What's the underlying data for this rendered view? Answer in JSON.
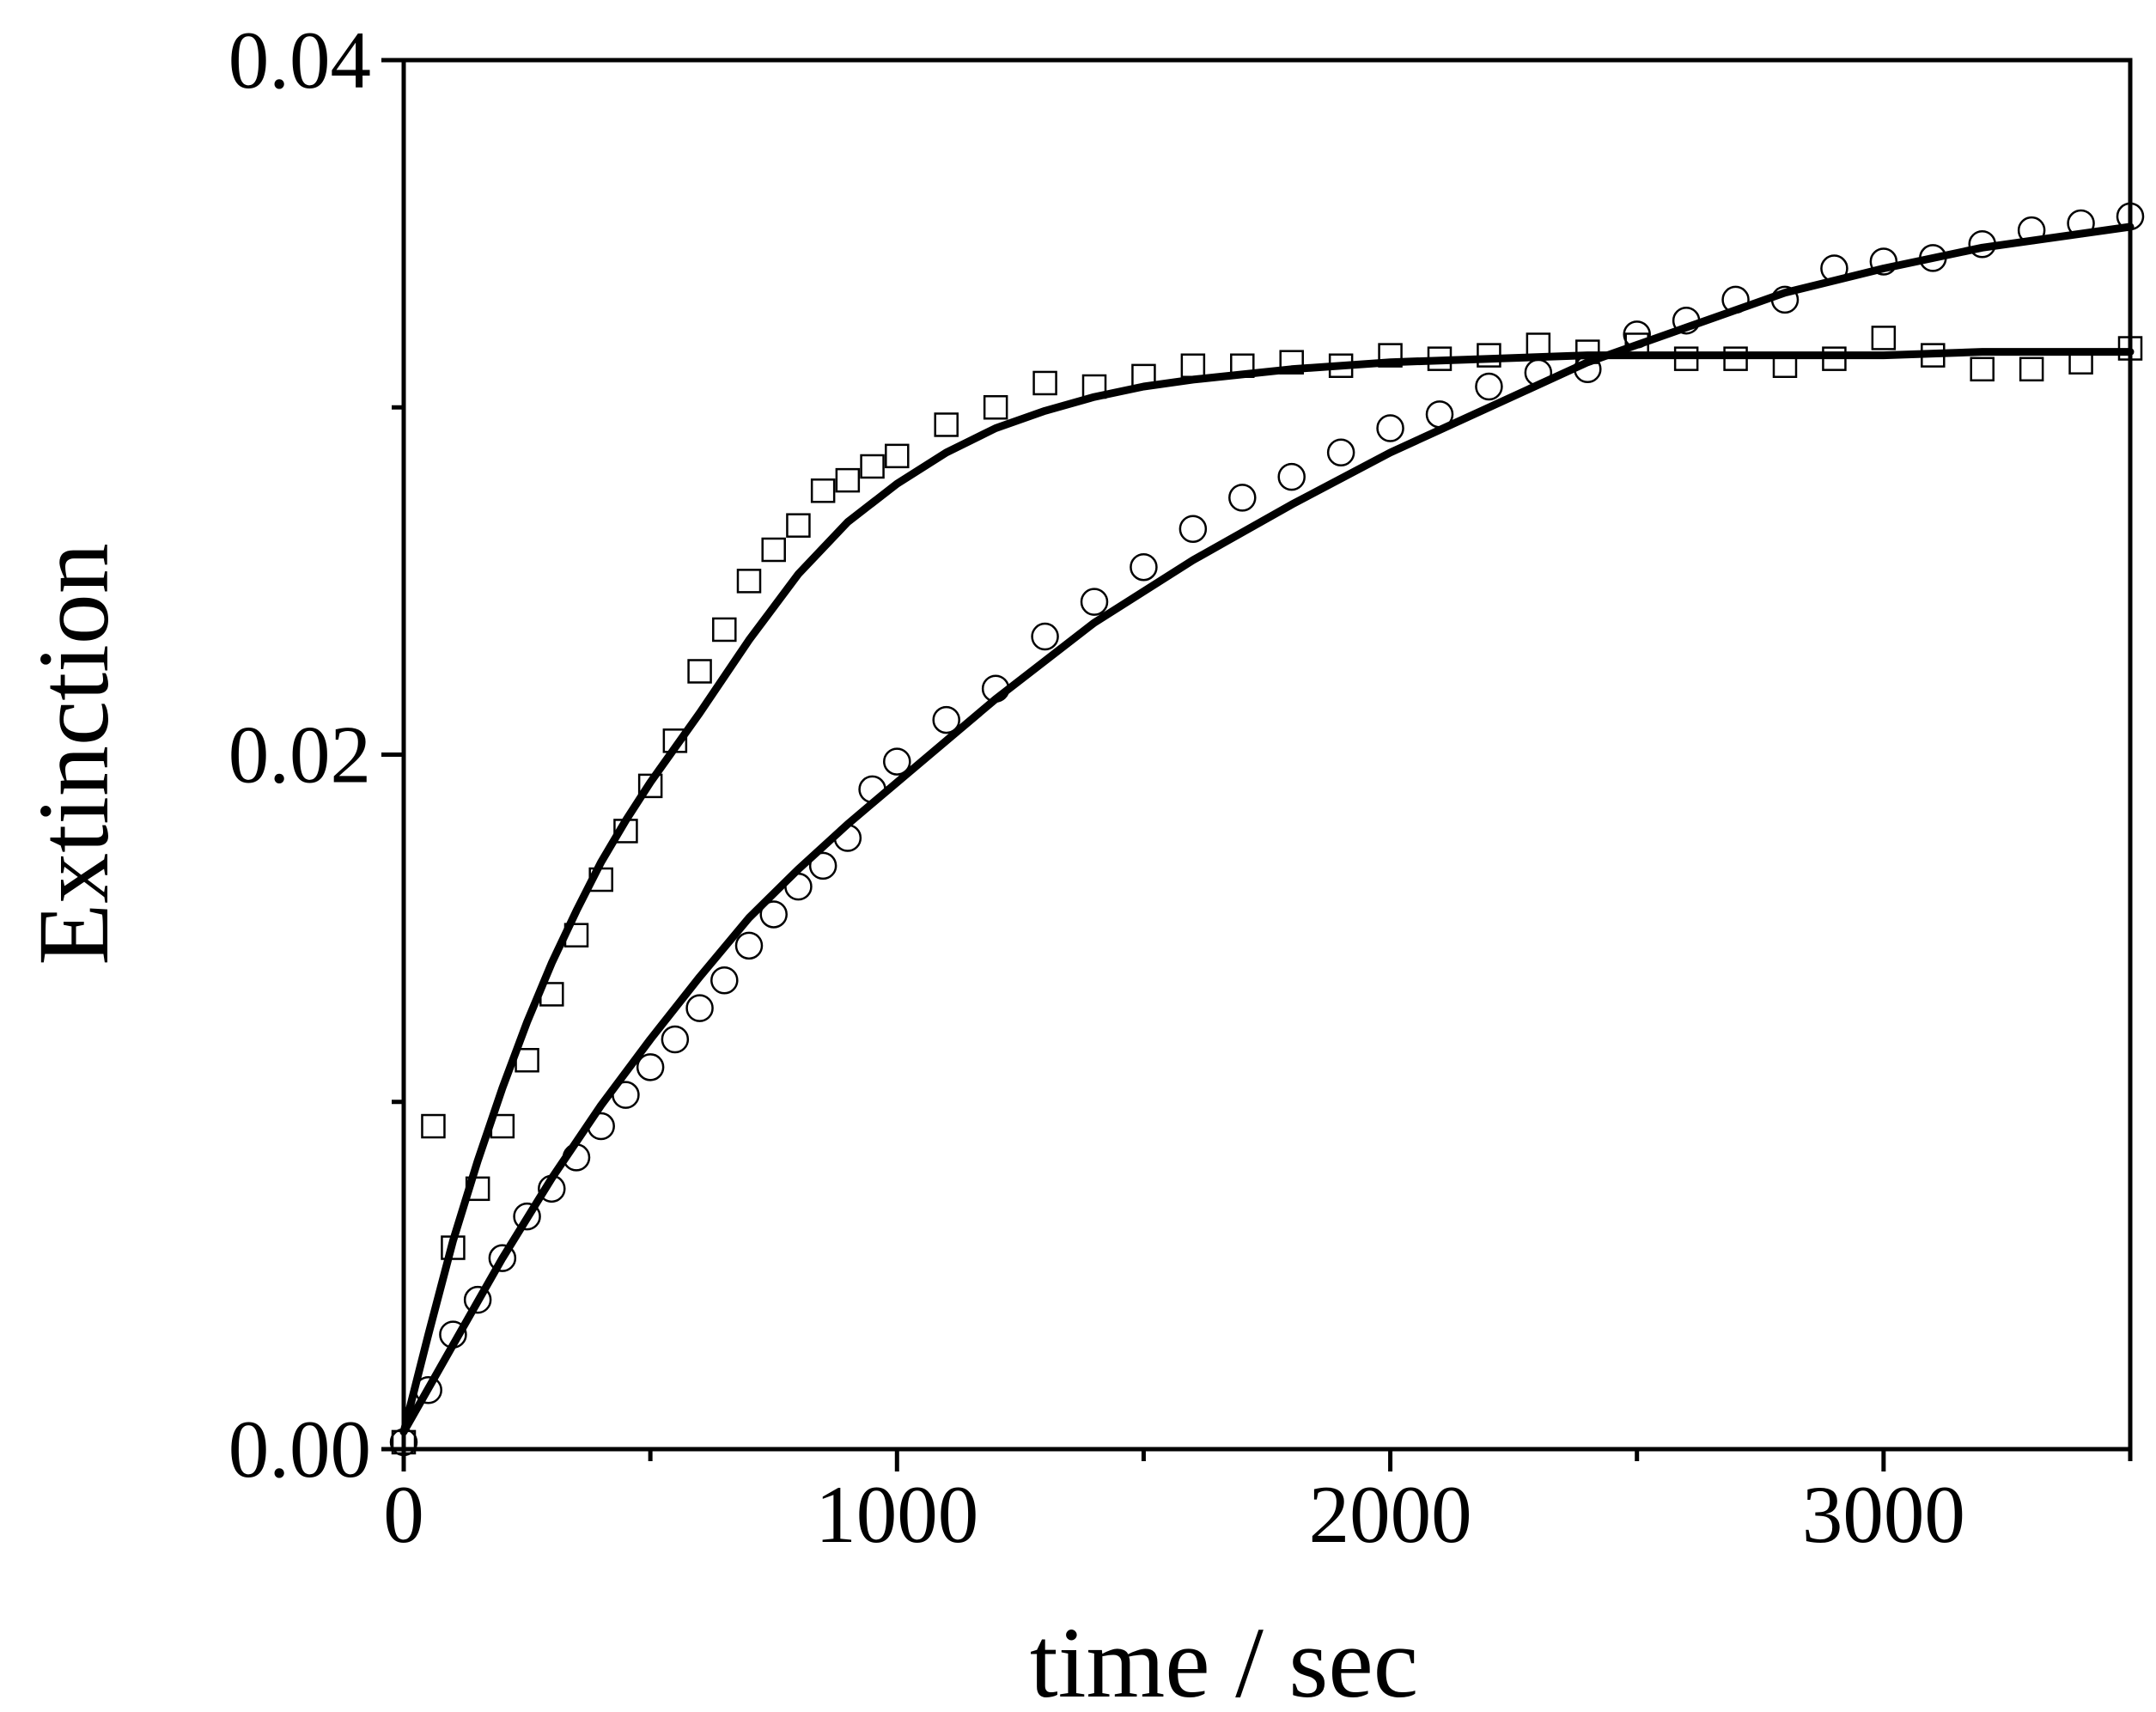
{
  "chart_data": {
    "type": "scatter",
    "title": "",
    "xlabel": "time / sec",
    "ylabel": "Extinction",
    "xlim": [
      0,
      3500
    ],
    "ylim": [
      0,
      0.04
    ],
    "x_ticks": [
      {
        "value": 0,
        "label": "0"
      },
      {
        "value": 1000,
        "label": "1000"
      },
      {
        "value": 2000,
        "label": "2000"
      },
      {
        "value": 3000,
        "label": "3000"
      }
    ],
    "x_minor_ticks": [
      500,
      1500,
      2500,
      3500
    ],
    "y_ticks": [
      {
        "value": 0,
        "label": "0.00"
      },
      {
        "value": 0.02,
        "label": "0.02"
      },
      {
        "value": 0.04,
        "label": "0.04"
      }
    ],
    "y_minor_ticks": [
      0.01,
      0.03
    ],
    "grid": false,
    "legend": "none",
    "series": [
      {
        "marker": "square",
        "x": [
          0,
          60,
          100,
          150,
          200,
          250,
          300,
          350,
          400,
          450,
          500,
          550,
          600,
          650,
          700,
          750,
          800,
          850,
          900,
          950,
          1000,
          1100,
          1200,
          1300,
          1400,
          1500,
          1600,
          1700,
          1800,
          1900,
          2000,
          2100,
          2200,
          2300,
          2400,
          2500,
          2600,
          2700,
          2800,
          2900,
          3000,
          3100,
          3200,
          3300,
          3400,
          3500
        ],
        "y": [
          0.0002,
          0.0093,
          0.0058,
          0.0075,
          0.0093,
          0.0112,
          0.0131,
          0.0148,
          0.0164,
          0.0178,
          0.0191,
          0.0204,
          0.0224,
          0.0236,
          0.025,
          0.0259,
          0.0266,
          0.0276,
          0.0279,
          0.0283,
          0.0286,
          0.0295,
          0.03,
          0.0307,
          0.0306,
          0.0309,
          0.0312,
          0.0312,
          0.0313,
          0.0312,
          0.0315,
          0.0314,
          0.0315,
          0.0318,
          0.0316,
          0.0318,
          0.0314,
          0.0314,
          0.0312,
          0.0314,
          0.032,
          0.0315,
          0.0311,
          0.0311,
          0.0313,
          0.0317
        ]
      },
      {
        "marker": "circle",
        "x": [
          0,
          50,
          100,
          150,
          200,
          250,
          300,
          350,
          400,
          450,
          500,
          550,
          600,
          650,
          700,
          750,
          800,
          850,
          900,
          950,
          1000,
          1100,
          1200,
          1300,
          1400,
          1500,
          1600,
          1700,
          1800,
          1900,
          2000,
          2100,
          2200,
          2300,
          2400,
          2500,
          2600,
          2700,
          2800,
          2900,
          3000,
          3100,
          3200,
          3300,
          3400,
          3500
        ],
        "y": [
          0.0002,
          0.0017,
          0.0033,
          0.0043,
          0.0055,
          0.0067,
          0.0075,
          0.0084,
          0.0093,
          0.0102,
          0.011,
          0.0118,
          0.0127,
          0.0135,
          0.0145,
          0.0154,
          0.0162,
          0.0168,
          0.0176,
          0.019,
          0.0198,
          0.021,
          0.0219,
          0.0234,
          0.0244,
          0.0254,
          0.0265,
          0.0274,
          0.028,
          0.0287,
          0.0294,
          0.0298,
          0.0306,
          0.031,
          0.0311,
          0.0321,
          0.0325,
          0.0331,
          0.0331,
          0.034,
          0.0342,
          0.0343,
          0.0347,
          0.0351,
          0.0353,
          0.0355
        ]
      }
    ],
    "fit_curves": [
      {
        "x": [
          0,
          50,
          100,
          150,
          200,
          250,
          300,
          350,
          400,
          450,
          500,
          600,
          700,
          800,
          900,
          1000,
          1100,
          1200,
          1300,
          1400,
          1500,
          1600,
          1800,
          2000,
          2200,
          2400,
          2600,
          2800,
          3000,
          3200,
          3500
        ],
        "y": [
          0.0005,
          0.0033,
          0.006,
          0.0083,
          0.0104,
          0.0123,
          0.014,
          0.0155,
          0.0169,
          0.0181,
          0.0192,
          0.0212,
          0.0233,
          0.0252,
          0.0267,
          0.0278,
          0.0287,
          0.0294,
          0.0299,
          0.0303,
          0.0306,
          0.0308,
          0.0311,
          0.0313,
          0.0314,
          0.0315,
          0.0315,
          0.0315,
          0.0315,
          0.0316,
          0.0316
        ]
      },
      {
        "x": [
          0,
          100,
          200,
          300,
          400,
          500,
          600,
          700,
          800,
          900,
          1000,
          1200,
          1400,
          1600,
          1800,
          2000,
          2200,
          2400,
          2600,
          2800,
          3000,
          3200,
          3500
        ],
        "y": [
          0.0005,
          0.003,
          0.0055,
          0.0078,
          0.0099,
          0.0118,
          0.0136,
          0.0153,
          0.0167,
          0.018,
          0.0192,
          0.0216,
          0.0238,
          0.0256,
          0.0272,
          0.0287,
          0.03,
          0.0313,
          0.0323,
          0.0333,
          0.034,
          0.0346,
          0.0352
        ]
      }
    ]
  }
}
